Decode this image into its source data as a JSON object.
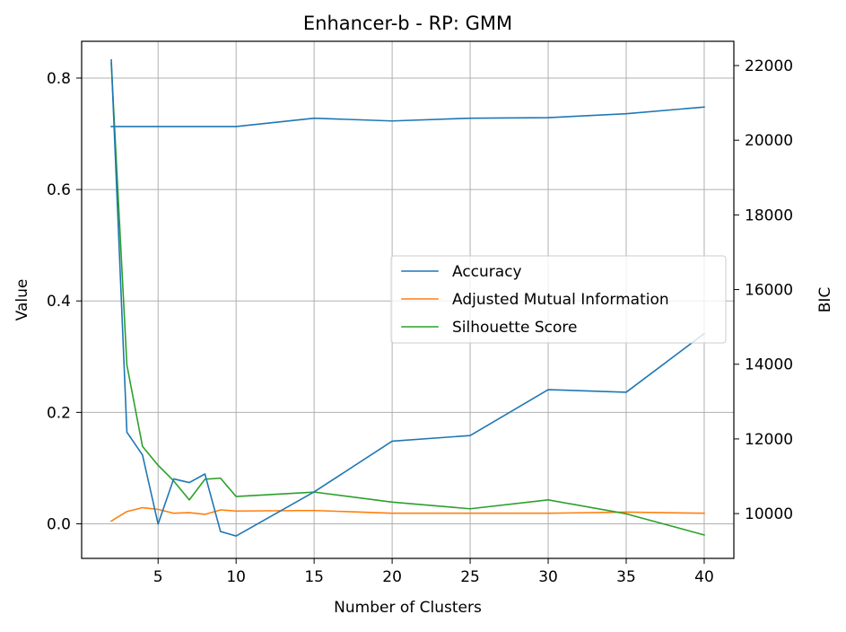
{
  "chart_data": {
    "type": "line",
    "title": "Enhancer-b - RP: GMM",
    "xlabel": "Number of Clusters",
    "ylabel": "Value",
    "y2label": "BIC",
    "xlim": [
      0.1,
      41.9
    ],
    "ylim": [
      -0.062,
      0.866
    ],
    "y2lim": [
      8800,
      22650
    ],
    "xticks": [
      5,
      10,
      15,
      20,
      25,
      30,
      35,
      40
    ],
    "yticks": [
      0.0,
      0.2,
      0.4,
      0.6,
      0.8
    ],
    "y2ticks": [
      10000,
      12000,
      14000,
      16000,
      18000,
      20000,
      22000
    ],
    "grid": true,
    "legend_position": "center-right",
    "series": [
      {
        "name": "Accuracy",
        "axis": "left",
        "color": "#1f77b4",
        "x": [
          2,
          3,
          4,
          5,
          6,
          7,
          8,
          9,
          10,
          15,
          20,
          25,
          30,
          35,
          40
        ],
        "values": [
          0.713,
          0.713,
          0.713,
          0.713,
          0.713,
          0.713,
          0.713,
          0.713,
          0.713,
          0.728,
          0.723,
          0.728,
          0.729,
          0.736,
          0.748
        ]
      },
      {
        "name": "Adjusted Mutual Information",
        "axis": "left",
        "color": "#ff7f0e",
        "x": [
          2,
          3,
          4,
          5,
          6,
          7,
          8,
          9,
          10,
          15,
          20,
          25,
          30,
          35,
          40
        ],
        "values": [
          0.005,
          0.022,
          0.029,
          0.026,
          0.019,
          0.02,
          0.017,
          0.025,
          0.023,
          0.024,
          0.019,
          0.019,
          0.019,
          0.021,
          0.019
        ]
      },
      {
        "name": "Silhouette Score",
        "axis": "left",
        "color": "#2ca02c",
        "x": [
          2,
          3,
          4,
          5,
          6,
          7,
          8,
          9,
          10,
          15,
          20,
          25,
          30,
          35,
          40
        ],
        "values": [
          0.826,
          0.285,
          0.139,
          0.105,
          0.077,
          0.043,
          0.08,
          0.082,
          0.049,
          0.057,
          0.039,
          0.027,
          0.043,
          0.018,
          -0.02
        ]
      },
      {
        "axis": "right",
        "color": "#1f77b4",
        "x": [
          2,
          3,
          4,
          5,
          6,
          7,
          8,
          9,
          10,
          15,
          20,
          25,
          30,
          35,
          40
        ],
        "values": [
          22150,
          12180,
          11570,
          9720,
          10930,
          10830,
          11060,
          9520,
          9400,
          10580,
          11940,
          12090,
          13320,
          13250,
          14820
        ]
      }
    ]
  }
}
